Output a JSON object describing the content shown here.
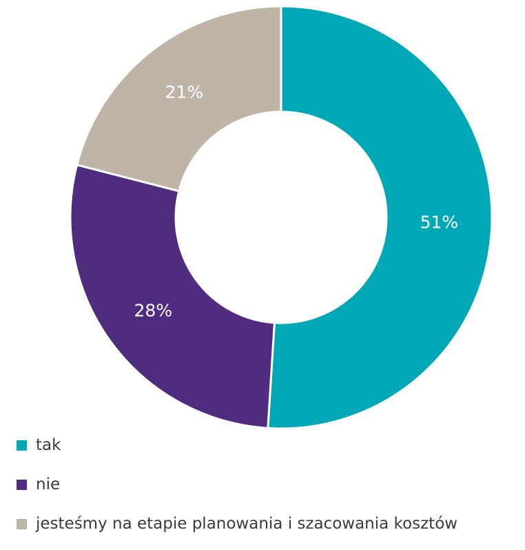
{
  "chart_data": {
    "type": "pie",
    "title": "",
    "slices": [
      {
        "label": "tak",
        "value": 51,
        "display": "51%",
        "color": "#00A7B5"
      },
      {
        "label": "nie",
        "value": 28,
        "display": "28%",
        "color": "#4F2C7D"
      },
      {
        "label": "jesteśmy na etapie planowania i szacowania kosztów",
        "value": 21,
        "display": "21%",
        "color": "#BFB5A6"
      }
    ],
    "legend_position": "bottom-left",
    "donut": true
  }
}
